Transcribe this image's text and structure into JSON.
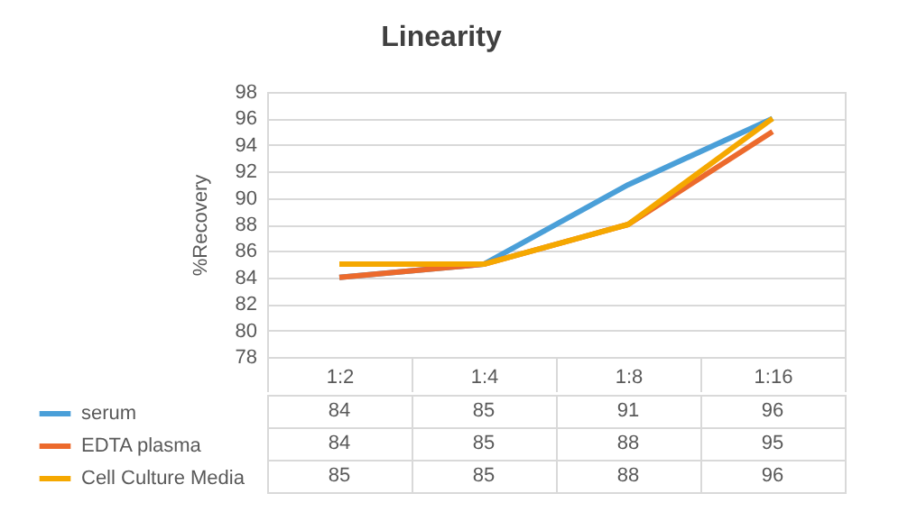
{
  "chart_data": {
    "type": "line",
    "title": "Linearity",
    "ylabel": "%Recovery",
    "categories": [
      "1:2",
      "1:4",
      "1:8",
      "1:16"
    ],
    "series": [
      {
        "name": "serum",
        "color": "#4a9fd8",
        "values": [
          84,
          85,
          91,
          96
        ]
      },
      {
        "name": "EDTA plasma",
        "color": "#ec6a2c",
        "values": [
          84,
          85,
          88,
          95
        ]
      },
      {
        "name": "Cell Culture Media",
        "color": "#f5a800",
        "values": [
          85,
          85,
          88,
          96
        ]
      }
    ],
    "ylim": [
      78,
      98
    ],
    "yticks": [
      78,
      80,
      82,
      84,
      86,
      88,
      90,
      92,
      94,
      96,
      98
    ],
    "grid": "y",
    "legend": "bottom",
    "data_labels": true
  }
}
